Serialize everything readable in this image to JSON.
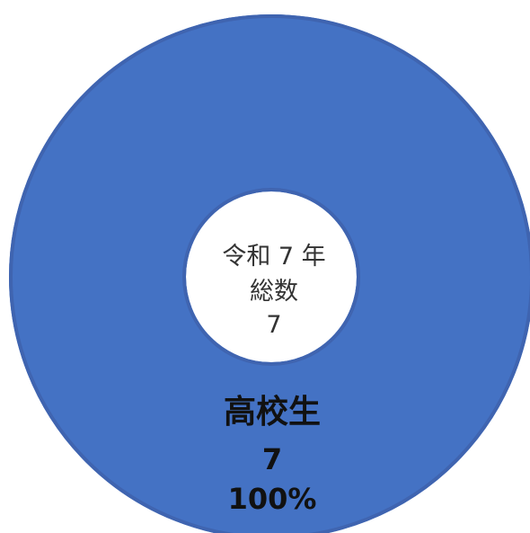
{
  "chart_data": {
    "type": "pie",
    "center_label": [
      "令和 7 年",
      "総数",
      "7"
    ],
    "categories": [
      "高校生"
    ],
    "values": [
      7
    ],
    "percents": [
      "100%"
    ],
    "colors": [
      "#4472C4"
    ],
    "edge_color": "#3F64B0"
  }
}
